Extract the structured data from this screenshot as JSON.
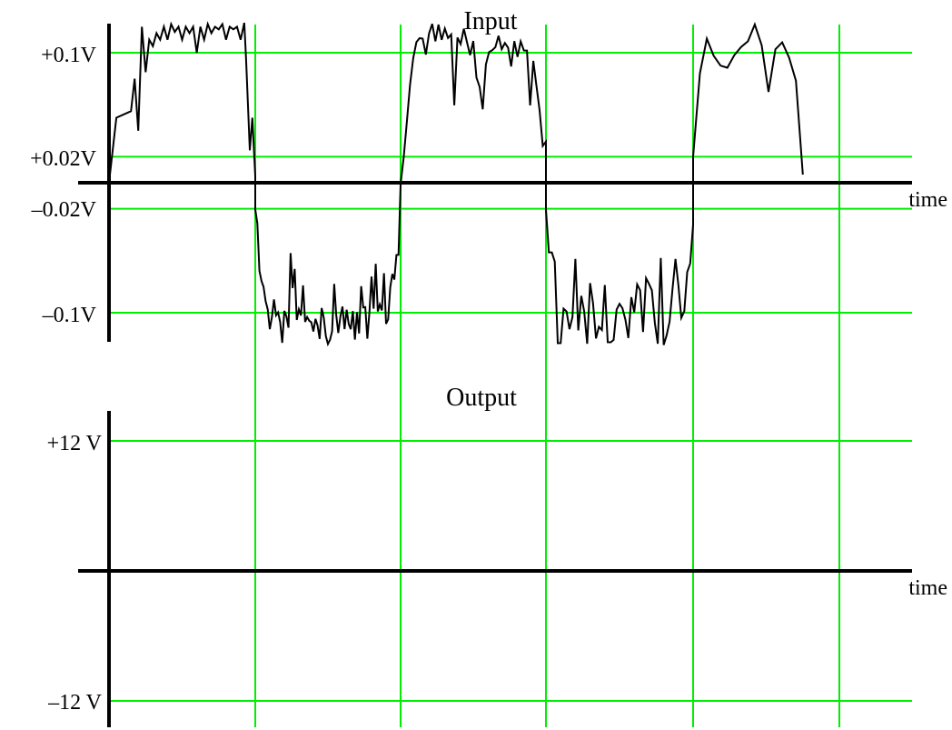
{
  "colors": {
    "grid": "#00ee00",
    "axis": "#000000",
    "signal": "#000000",
    "background": "#ffffff"
  },
  "chart_data": [
    {
      "type": "line",
      "title": "Input",
      "xlabel": "time",
      "ylabel": "",
      "ytick_labels": [
        "+0.1V",
        "+0.02V",
        "–0.02V",
        "–0.1V"
      ],
      "ytick_values": [
        0.1,
        0.02,
        -0.02,
        -0.1
      ],
      "ylim": [
        -0.12,
        0.13
      ],
      "vertical_gridlines_at_zero_crossings": true,
      "grid": true,
      "series": [
        {
          "name": "",
          "points": [
            [
              0.0,
              0.0
            ],
            [
              0.2,
              0.05
            ],
            [
              0.6,
              0.055
            ],
            [
              0.7,
              0.08
            ],
            [
              0.8,
              0.04
            ],
            [
              0.9,
              0.12
            ],
            [
              1.0,
              0.085
            ],
            [
              1.1,
              0.11
            ],
            [
              1.2,
              0.105
            ],
            [
              1.3,
              0.115
            ],
            [
              1.4,
              0.11
            ],
            [
              1.5,
              0.12
            ],
            [
              1.6,
              0.11
            ],
            [
              1.7,
              0.122
            ],
            [
              1.8,
              0.116
            ],
            [
              1.9,
              0.12
            ],
            [
              2.0,
              0.11
            ],
            [
              2.1,
              0.12
            ],
            [
              2.2,
              0.115
            ],
            [
              2.3,
              0.12
            ],
            [
              2.4,
              0.1
            ],
            [
              2.5,
              0.12
            ],
            [
              2.6,
              0.11
            ],
            [
              2.7,
              0.122
            ],
            [
              2.8,
              0.115
            ],
            [
              2.9,
              0.12
            ],
            [
              3.0,
              0.118
            ],
            [
              3.1,
              0.122
            ],
            [
              3.2,
              0.11
            ],
            [
              3.3,
              0.12
            ],
            [
              3.4,
              0.118
            ],
            [
              3.5,
              0.12
            ],
            [
              3.6,
              0.11
            ],
            [
              3.7,
              0.123
            ],
            [
              3.75,
              0.095
            ],
            [
              3.85,
              0.025
            ],
            [
              3.92,
              0.05
            ],
            [
              4.0,
              0.005
            ]
          ]
        }
      ]
    },
    {
      "type": "line",
      "title": "Output",
      "xlabel": "time",
      "ylabel": "",
      "ytick_labels": [
        "+12 V",
        "–12 V"
      ],
      "ytick_values": [
        12,
        -12
      ],
      "ylim": [
        -13,
        14
      ],
      "vertical_gridlines_at_zero_crossings": true,
      "grid": true,
      "series": []
    }
  ]
}
